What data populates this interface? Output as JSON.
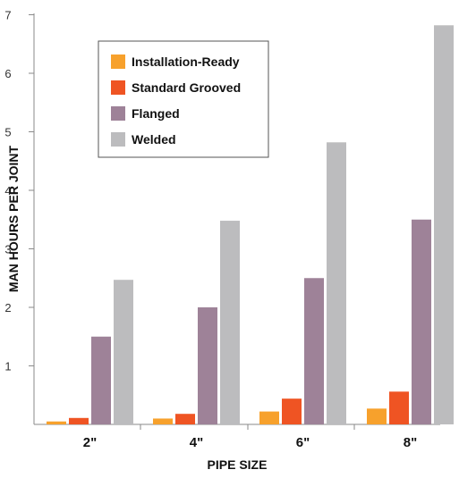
{
  "chart_data": {
    "type": "bar",
    "title": "",
    "xlabel": "PIPE SIZE",
    "ylabel": "MAN HOURS PER JOINT",
    "categories": [
      "2\"",
      "4\"",
      "6\"",
      "8\""
    ],
    "yticks": [
      1,
      2,
      3,
      4,
      5,
      6,
      7
    ],
    "ylim": [
      0,
      7
    ],
    "grid": false,
    "legend_position": "top-left",
    "series": [
      {
        "name": "Installation-Ready",
        "color": "#f7a12c",
        "values": [
          0.05,
          0.1,
          0.22,
          0.27
        ]
      },
      {
        "name": "Standard Grooved",
        "color": "#ef5423",
        "values": [
          0.11,
          0.18,
          0.44,
          0.56
        ]
      },
      {
        "name": "Flanged",
        "color": "#9e8298",
        "values": [
          1.5,
          2.0,
          2.5,
          3.5
        ]
      },
      {
        "name": "Welded",
        "color": "#bcbcbe",
        "values": [
          2.47,
          3.48,
          4.82,
          6.82
        ]
      }
    ]
  }
}
